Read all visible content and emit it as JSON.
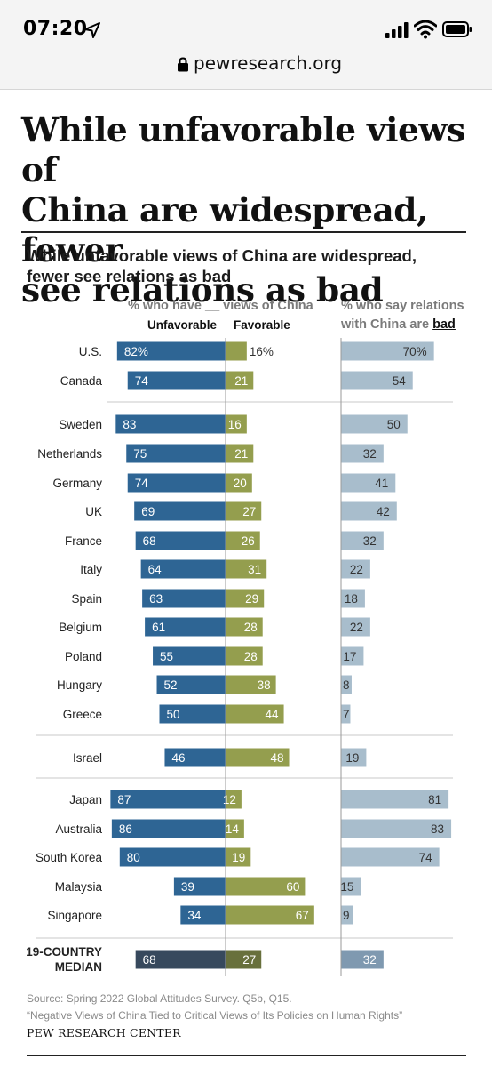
{
  "status_bar": {
    "time": "07:20",
    "url": "pewresearch.org"
  },
  "article": {
    "headline_lines": [
      "While unfavorable views of",
      "China are widespread, fewer",
      "see relations as bad"
    ]
  },
  "chart_data": {
    "type": "bar",
    "title_lines": [
      "While unfavorable  views of China are widespread,",
      "fewer  see relations as bad"
    ],
    "views_header": "% who have __ views of China",
    "relations_header_line1": "% who say relations",
    "relations_header_line2_prefix": "with China are ",
    "relations_header_bad": "bad",
    "unfavorable_label": "Unfavorable",
    "favorable_label": "Favorable",
    "rows": [
      {
        "country": "U.S.",
        "unfavorable": 82,
        "favorable": 16,
        "bad": 70,
        "unfavorable_text": "82%",
        "favorable_text": "16%",
        "bad_text": "70%"
      },
      {
        "country": "Canada",
        "unfavorable": 74,
        "favorable": 21,
        "bad": 54
      },
      {
        "country": "Sweden",
        "unfavorable": 83,
        "favorable": 16,
        "bad": 50
      },
      {
        "country": "Netherlands",
        "unfavorable": 75,
        "favorable": 21,
        "bad": 32
      },
      {
        "country": "Germany",
        "unfavorable": 74,
        "favorable": 20,
        "bad": 41
      },
      {
        "country": "UK",
        "unfavorable": 69,
        "favorable": 27,
        "bad": 42
      },
      {
        "country": "France",
        "unfavorable": 68,
        "favorable": 26,
        "bad": 32
      },
      {
        "country": "Italy",
        "unfavorable": 64,
        "favorable": 31,
        "bad": 22
      },
      {
        "country": "Spain",
        "unfavorable": 63,
        "favorable": 29,
        "bad": 18
      },
      {
        "country": "Belgium",
        "unfavorable": 61,
        "favorable": 28,
        "bad": 22
      },
      {
        "country": "Poland",
        "unfavorable": 55,
        "favorable": 28,
        "bad": 17
      },
      {
        "country": "Hungary",
        "unfavorable": 52,
        "favorable": 38,
        "bad": 8
      },
      {
        "country": "Greece",
        "unfavorable": 50,
        "favorable": 44,
        "bad": 7
      },
      {
        "country": "Israel",
        "unfavorable": 46,
        "favorable": 48,
        "bad": 19
      },
      {
        "country": "Japan",
        "unfavorable": 87,
        "favorable": 12,
        "bad": 81
      },
      {
        "country": "Australia",
        "unfavorable": 86,
        "favorable": 14,
        "bad": 83
      },
      {
        "country": "South Korea",
        "unfavorable": 80,
        "favorable": 19,
        "bad": 74
      },
      {
        "country": "Malaysia",
        "unfavorable": 39,
        "favorable": 60,
        "bad": 15
      },
      {
        "country": "Singapore",
        "unfavorable": 34,
        "favorable": 67,
        "bad": 9
      },
      {
        "country": "19-COUNTRY MEDIAN",
        "label_lines": [
          "19-COUNTRY",
          "MEDIAN"
        ],
        "unfavorable": 68,
        "favorable": 27,
        "bad": 32,
        "median": true
      }
    ],
    "colors": {
      "unfavorable": "#2e6594",
      "favorable": "#949e4e",
      "bad": "#a8bdcc",
      "median_unfavorable": "#37495d",
      "median_favorable": "#68703c",
      "median_bad": "#7f99b0"
    },
    "source_line1": "Source: Spring 2022 Global Attitudes Survey. Q5b, Q15.",
    "source_line2": "“Negative Views of China Tied to Critical Views of Its Policies on Human Rights”",
    "brand": "PEW RESEARCH CENTER"
  }
}
